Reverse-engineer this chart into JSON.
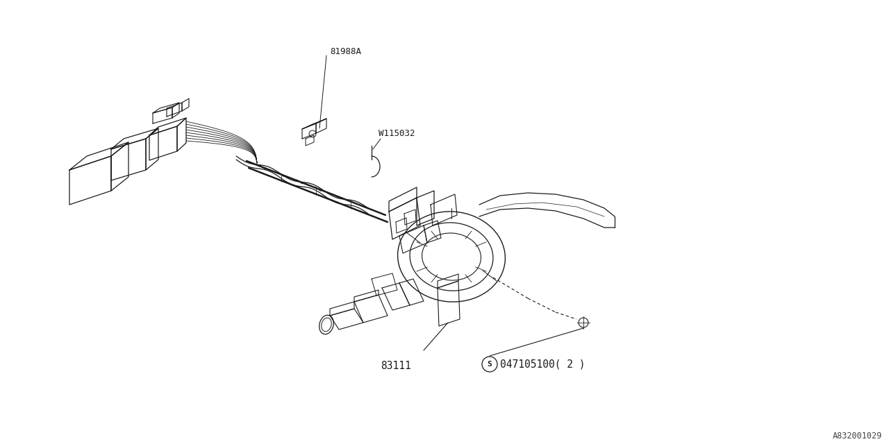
{
  "bg_color": "#ffffff",
  "line_color": "#1a1a1a",
  "text_color": "#1a1a1a",
  "fig_width": 12.8,
  "fig_height": 6.4,
  "dpi": 100,
  "watermark": "A832001029",
  "label_81988A": "81988A",
  "label_W115032": "W115032",
  "label_83111": "83111",
  "label_S": "S",
  "label_part": "047105100（2）",
  "label_part2": "047105100( 2 )"
}
